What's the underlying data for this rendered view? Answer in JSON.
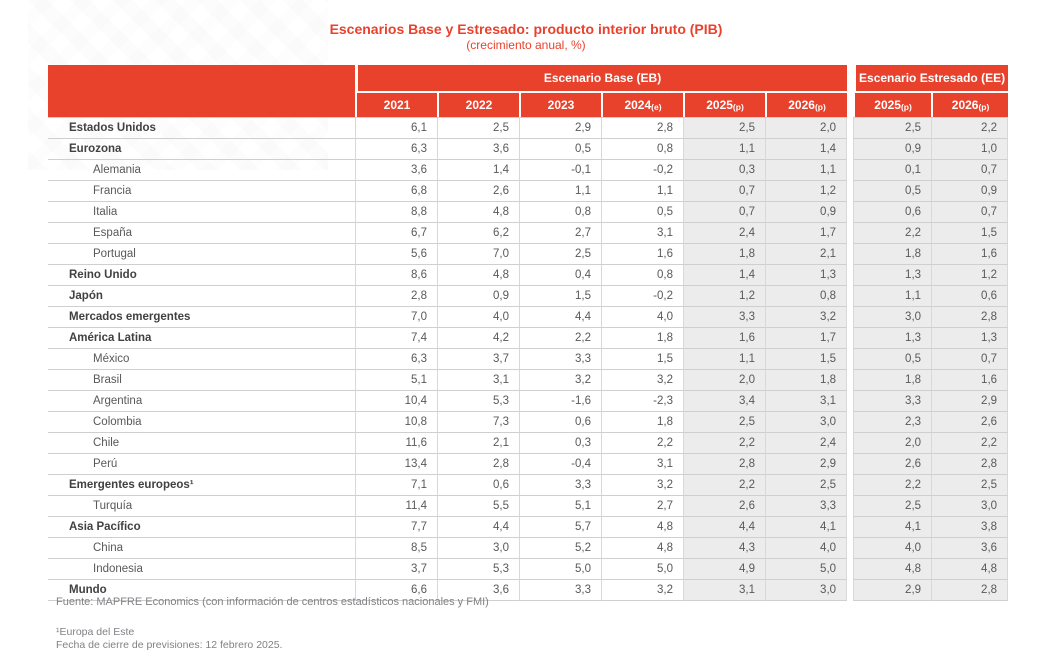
{
  "title": "Escenarios Base y Estresado: producto interior bruto (PIB)",
  "subtitle": "(crecimiento anual, %)",
  "colors": {
    "accent_red": "#E8422D",
    "shaded_column": "#ECECEC",
    "grid_line": "#CFCFCF",
    "text_gray": "#58595B"
  },
  "table": {
    "group_headers": [
      {
        "label": "Escenario Base (EB)",
        "colspan": 6
      },
      {
        "label": "Escenario Estresado (EE)",
        "colspan": 2
      }
    ],
    "columns": [
      {
        "year": "2021",
        "suffix": ""
      },
      {
        "year": "2022",
        "suffix": ""
      },
      {
        "year": "2023",
        "suffix": ""
      },
      {
        "year": "2024",
        "suffix": "(e)"
      },
      {
        "year": "2025",
        "suffix": "(p)"
      },
      {
        "year": "2026",
        "suffix": "(p)"
      },
      {
        "year": "2025",
        "suffix": "(p)"
      },
      {
        "year": "2026",
        "suffix": "(p)"
      }
    ],
    "rows": [
      {
        "label": "Estados Unidos",
        "bold": true,
        "indent": false,
        "values": [
          "6,1",
          "2,5",
          "2,9",
          "2,8",
          "2,5",
          "2,0",
          "2,5",
          "2,2"
        ]
      },
      {
        "label": "Eurozona",
        "bold": true,
        "indent": false,
        "values": [
          "6,3",
          "3,6",
          "0,5",
          "0,8",
          "1,1",
          "1,4",
          "0,9",
          "1,0"
        ]
      },
      {
        "label": "Alemania",
        "bold": false,
        "indent": true,
        "values": [
          "3,6",
          "1,4",
          "-0,1",
          "-0,2",
          "0,3",
          "1,1",
          "0,1",
          "0,7"
        ]
      },
      {
        "label": "Francia",
        "bold": false,
        "indent": true,
        "values": [
          "6,8",
          "2,6",
          "1,1",
          "1,1",
          "0,7",
          "1,2",
          "0,5",
          "0,9"
        ]
      },
      {
        "label": "Italia",
        "bold": false,
        "indent": true,
        "values": [
          "8,8",
          "4,8",
          "0,8",
          "0,5",
          "0,7",
          "0,9",
          "0,6",
          "0,7"
        ]
      },
      {
        "label": "España",
        "bold": false,
        "indent": true,
        "values": [
          "6,7",
          "6,2",
          "2,7",
          "3,1",
          "2,4",
          "1,7",
          "2,2",
          "1,5"
        ]
      },
      {
        "label": "Portugal",
        "bold": false,
        "indent": true,
        "values": [
          "5,6",
          "7,0",
          "2,5",
          "1,6",
          "1,8",
          "2,1",
          "1,8",
          "1,6"
        ]
      },
      {
        "label": "Reino Unido",
        "bold": true,
        "indent": false,
        "values": [
          "8,6",
          "4,8",
          "0,4",
          "0,8",
          "1,4",
          "1,3",
          "1,3",
          "1,2"
        ]
      },
      {
        "label": "Japón",
        "bold": true,
        "indent": false,
        "values": [
          "2,8",
          "0,9",
          "1,5",
          "-0,2",
          "1,2",
          "0,8",
          "1,1",
          "0,6"
        ]
      },
      {
        "label": "Mercados emergentes",
        "bold": true,
        "indent": false,
        "values": [
          "7,0",
          "4,0",
          "4,4",
          "4,0",
          "3,3",
          "3,2",
          "3,0",
          "2,8"
        ]
      },
      {
        "label": "América Latina",
        "bold": true,
        "indent": false,
        "values": [
          "7,4",
          "4,2",
          "2,2",
          "1,8",
          "1,6",
          "1,7",
          "1,3",
          "1,3"
        ]
      },
      {
        "label": "México",
        "bold": false,
        "indent": true,
        "values": [
          "6,3",
          "3,7",
          "3,3",
          "1,5",
          "1,1",
          "1,5",
          "0,5",
          "0,7"
        ]
      },
      {
        "label": "Brasil",
        "bold": false,
        "indent": true,
        "values": [
          "5,1",
          "3,1",
          "3,2",
          "3,2",
          "2,0",
          "1,8",
          "1,8",
          "1,6"
        ]
      },
      {
        "label": "Argentina",
        "bold": false,
        "indent": true,
        "values": [
          "10,4",
          "5,3",
          "-1,6",
          "-2,3",
          "3,4",
          "3,1",
          "3,3",
          "2,9"
        ]
      },
      {
        "label": "Colombia",
        "bold": false,
        "indent": true,
        "values": [
          "10,8",
          "7,3",
          "0,6",
          "1,8",
          "2,5",
          "3,0",
          "2,3",
          "2,6"
        ]
      },
      {
        "label": "Chile",
        "bold": false,
        "indent": true,
        "values": [
          "11,6",
          "2,1",
          "0,3",
          "2,2",
          "2,2",
          "2,4",
          "2,0",
          "2,2"
        ]
      },
      {
        "label": "Perú",
        "bold": false,
        "indent": true,
        "values": [
          "13,4",
          "2,8",
          "-0,4",
          "3,1",
          "2,8",
          "2,9",
          "2,6",
          "2,8"
        ]
      },
      {
        "label": "Emergentes europeos¹",
        "bold": true,
        "indent": false,
        "values": [
          "7,1",
          "0,6",
          "3,3",
          "3,2",
          "2,2",
          "2,5",
          "2,2",
          "2,5"
        ]
      },
      {
        "label": "Turquía",
        "bold": false,
        "indent": true,
        "values": [
          "11,4",
          "5,5",
          "5,1",
          "2,7",
          "2,6",
          "3,3",
          "2,5",
          "3,0"
        ]
      },
      {
        "label": "Asia Pacífico",
        "bold": true,
        "indent": false,
        "values": [
          "7,7",
          "4,4",
          "5,7",
          "4,8",
          "4,4",
          "4,1",
          "4,1",
          "3,8"
        ]
      },
      {
        "label": "China",
        "bold": false,
        "indent": true,
        "values": [
          "8,5",
          "3,0",
          "5,2",
          "4,8",
          "4,3",
          "4,0",
          "4,0",
          "3,6"
        ]
      },
      {
        "label": "Indonesia",
        "bold": false,
        "indent": true,
        "values": [
          "3,7",
          "5,3",
          "5,0",
          "5,0",
          "4,9",
          "5,0",
          "4,8",
          "4,8"
        ]
      },
      {
        "label": "Mundo",
        "bold": true,
        "indent": false,
        "values": [
          "6,6",
          "3,6",
          "3,3",
          "3,2",
          "3,1",
          "3,0",
          "2,9",
          "2,8"
        ]
      }
    ]
  },
  "footer": {
    "source": "Fuente: MAPFRE Economics (con información de centros estadísticos nacionales y FMI)",
    "footnote1": "¹Europa del Este",
    "closing": "Fecha de cierre de previsiones: 12 febrero 2025."
  }
}
